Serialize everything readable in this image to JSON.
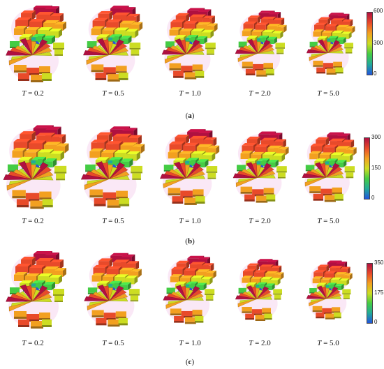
{
  "figures": [
    {
      "label_letter": "a",
      "temperatures": [
        "0.2",
        "0.5",
        "1.0",
        "2.0",
        "5.0"
      ],
      "colorbar_ticks": [
        "600",
        "300",
        "0"
      ],
      "glyph_scale": [
        1.0,
        0.98,
        0.92,
        0.85,
        0.8
      ]
    },
    {
      "label_letter": "b",
      "temperatures": [
        "0.2",
        "0.5",
        "1.0",
        "2.0",
        "5.0"
      ],
      "colorbar_ticks": [
        "300",
        "150",
        "0"
      ],
      "glyph_scale": [
        1.08,
        1.05,
        0.98,
        0.92,
        0.9
      ]
    },
    {
      "label_letter": "c",
      "temperatures": [
        "0.2",
        "0.5",
        "1.0",
        "2.0",
        "5.0"
      ],
      "colorbar_ticks": [
        "350",
        "175",
        "0"
      ],
      "glyph_scale": [
        1.0,
        0.95,
        0.88,
        0.8,
        0.76
      ]
    }
  ],
  "temperature_symbol": "T",
  "colormap": [
    "#2255dd",
    "#22aa99",
    "#44cc44",
    "#ccdd22",
    "#f2a020",
    "#e84a2a",
    "#b01040"
  ]
}
